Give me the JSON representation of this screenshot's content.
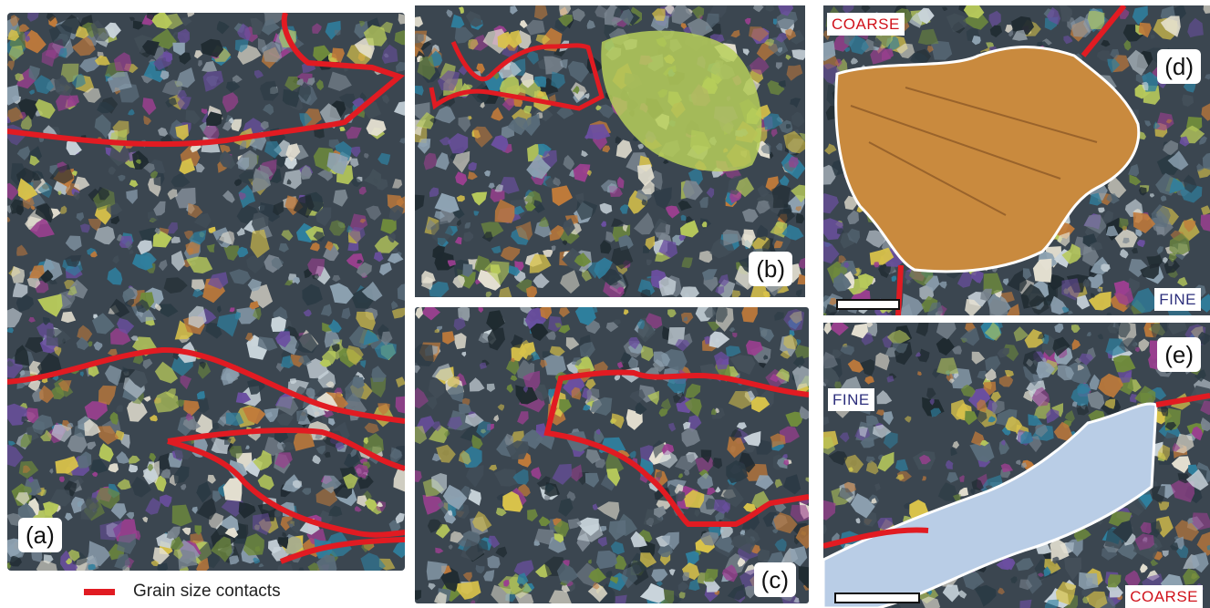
{
  "colors": {
    "contact_line": "#e11b22",
    "grain_outline": "#ffffff",
    "coarse_label": "#d0121b",
    "fine_label": "#2d2f7c"
  },
  "panels": {
    "a": {
      "label": "(a)"
    },
    "b": {
      "label": "(b)"
    },
    "c": {
      "label": "(c)"
    },
    "d": {
      "label": "(d)",
      "tag_top": "COARSE",
      "tag_bottom": "FINE"
    },
    "e": {
      "label": "(e)",
      "tag_top": "FINE",
      "tag_bottom": "COARSE"
    }
  },
  "legend": {
    "label": "Grain size contacts"
  }
}
